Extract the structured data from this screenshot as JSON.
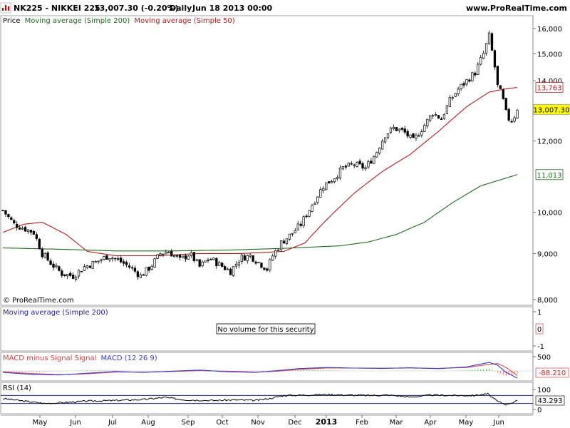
{
  "header": {
    "title": "NK225 - NIKKEI 225",
    "price": "13,007.30 (-0.20%)",
    "period": "Daily",
    "date": "Jun 18 2013 00:00",
    "site": "www.ProRealTime.com"
  },
  "main": {
    "legend_price": "Price",
    "legend_ma200": "Moving average (Simple 200)",
    "legend_ma50": "Moving average (Simple 50)",
    "copyright": "© ProRealTime.com"
  },
  "volume": {
    "title": "Moving average (Simple 200)",
    "message": "No volume for this security",
    "value_label": "0"
  },
  "macd": {
    "title_a": "MACD minus Signal Signal",
    "title_b": "MACD (12 26 9)",
    "value_label": "-88.210"
  },
  "rsi": {
    "title": "RSI (14)",
    "value_label": "43.293"
  },
  "colors": {
    "ma200": "#1e6b1e",
    "ma50": "#b01c1c",
    "macd": "#3a3acc",
    "signal": "#e05050",
    "candle_up": "#ffffff",
    "candle_down": "#000000",
    "rsi_band": "#1a237e",
    "price_tag": "#ffff00"
  },
  "chart_data": [
    {
      "type": "candlestick",
      "ylim": [
        8000,
        16000
      ],
      "yticks": [
        8000,
        9000,
        10000,
        12000,
        14000,
        15000,
        16000
      ],
      "ytick_labels": [
        "8,000",
        "9,000",
        "10,000",
        "12,000",
        "14,000",
        "15,000",
        "16,000"
      ],
      "x_labels": [
        "May",
        "Jun",
        "Jul",
        "Aug",
        "Sep",
        "Oct",
        "Nov",
        "Dec",
        "2013",
        "Feb",
        "Mar",
        "Apr",
        "May",
        "Jun"
      ],
      "price_anchors": [
        [
          0,
          10050
        ],
        [
          8,
          9700
        ],
        [
          15,
          9600
        ],
        [
          22,
          9500
        ],
        [
          28,
          9000
        ],
        [
          35,
          8750
        ],
        [
          42,
          8550
        ],
        [
          50,
          8500
        ],
        [
          58,
          8700
        ],
        [
          66,
          8800
        ],
        [
          75,
          8950
        ],
        [
          82,
          8850
        ],
        [
          90,
          8700
        ],
        [
          98,
          8500
        ],
        [
          105,
          8700
        ],
        [
          112,
          9000
        ],
        [
          118,
          9050
        ],
        [
          126,
          8850
        ],
        [
          133,
          9000
        ],
        [
          140,
          8700
        ],
        [
          147,
          8900
        ],
        [
          154,
          8750
        ],
        [
          162,
          8600
        ],
        [
          169,
          8900
        ],
        [
          176,
          8950
        ],
        [
          182,
          8800
        ],
        [
          188,
          8650
        ],
        [
          192,
          8950
        ],
        [
          198,
          9250
        ],
        [
          205,
          9450
        ],
        [
          212,
          9700
        ],
        [
          220,
          10200
        ],
        [
          228,
          10700
        ],
        [
          235,
          10900
        ],
        [
          242,
          11200
        ],
        [
          250,
          11300
        ],
        [
          258,
          11200
        ],
        [
          265,
          11600
        ],
        [
          272,
          12200
        ],
        [
          278,
          12400
        ],
        [
          285,
          12300
        ],
        [
          292,
          12000
        ],
        [
          300,
          12500
        ],
        [
          306,
          12900
        ],
        [
          312,
          12700
        ],
        [
          318,
          13300
        ],
        [
          324,
          13700
        ],
        [
          330,
          14000
        ],
        [
          336,
          14300
        ],
        [
          342,
          15000
        ],
        [
          346,
          15700
        ],
        [
          348,
          15100
        ],
        [
          350,
          14500
        ],
        [
          352,
          13800
        ],
        [
          354,
          13600
        ],
        [
          356,
          13300
        ],
        [
          358,
          12900
        ],
        [
          361,
          12600
        ],
        [
          364,
          12800
        ],
        [
          366,
          13050
        ]
      ],
      "ma200": {
        "name": "Moving average (Simple 200)",
        "anchors": [
          [
            0,
            9130
          ],
          [
            40,
            9100
          ],
          [
            80,
            9060
          ],
          [
            120,
            9060
          ],
          [
            160,
            9080
          ],
          [
            200,
            9120
          ],
          [
            240,
            9180
          ],
          [
            260,
            9270
          ],
          [
            280,
            9450
          ],
          [
            300,
            9750
          ],
          [
            320,
            10250
          ],
          [
            340,
            10700
          ],
          [
            366,
            11013
          ]
        ]
      },
      "ma50": {
        "name": "Moving average (Simple 50)",
        "anchors": [
          [
            0,
            9500
          ],
          [
            15,
            9700
          ],
          [
            28,
            9750
          ],
          [
            45,
            9450
          ],
          [
            60,
            9050
          ],
          [
            80,
            8950
          ],
          [
            110,
            8950
          ],
          [
            140,
            9000
          ],
          [
            170,
            9000
          ],
          [
            200,
            9050
          ],
          [
            215,
            9250
          ],
          [
            230,
            9800
          ],
          [
            250,
            10500
          ],
          [
            270,
            11100
          ],
          [
            290,
            11600
          ],
          [
            310,
            12300
          ],
          [
            330,
            13100
          ],
          [
            346,
            13600
          ],
          [
            356,
            13700
          ],
          [
            366,
            13763
          ]
        ]
      },
      "last_price_label": "13,007.30",
      "ma200_label": "11,013",
      "ma50_label": "13,763"
    },
    {
      "type": "table",
      "ylim": [
        -1,
        1
      ],
      "yticks": [
        1,
        -1
      ],
      "ytick_labels": [
        "1",
        "-1"
      ]
    },
    {
      "type": "line",
      "ylim": [
        -300,
        700
      ],
      "yticks": [
        500
      ],
      "ytick_labels": [
        "500"
      ],
      "macd": {
        "name": "MACD",
        "anchors": [
          [
            0,
            -50
          ],
          [
            20,
            -120
          ],
          [
            40,
            -140
          ],
          [
            60,
            -80
          ],
          [
            80,
            -20
          ],
          [
            100,
            -50
          ],
          [
            120,
            -10
          ],
          [
            140,
            30
          ],
          [
            160,
            -30
          ],
          [
            180,
            -50
          ],
          [
            195,
            10
          ],
          [
            210,
            80
          ],
          [
            230,
            120
          ],
          [
            250,
            100
          ],
          [
            270,
            90
          ],
          [
            290,
            110
          ],
          [
            310,
            80
          ],
          [
            330,
            140
          ],
          [
            346,
            300
          ],
          [
            352,
            200
          ],
          [
            358,
            -50
          ],
          [
            366,
            -250
          ]
        ]
      },
      "signal": {
        "name": "Signal",
        "anchors": [
          [
            0,
            -30
          ],
          [
            20,
            -90
          ],
          [
            40,
            -130
          ],
          [
            60,
            -100
          ],
          [
            80,
            -40
          ],
          [
            100,
            -40
          ],
          [
            120,
            -20
          ],
          [
            140,
            10
          ],
          [
            160,
            -10
          ],
          [
            180,
            -40
          ],
          [
            195,
            -10
          ],
          [
            210,
            50
          ],
          [
            230,
            100
          ],
          [
            250,
            100
          ],
          [
            270,
            95
          ],
          [
            290,
            100
          ],
          [
            310,
            90
          ],
          [
            330,
            120
          ],
          [
            346,
            230
          ],
          [
            352,
            260
          ],
          [
            358,
            120
          ],
          [
            366,
            -160
          ]
        ]
      }
    },
    {
      "type": "line",
      "ylim": [
        0,
        100
      ],
      "yticks": [
        100,
        0
      ],
      "ytick_labels": [
        "100",
        "0"
      ],
      "upper": 70,
      "lower": 30,
      "rsi": {
        "name": "RSI",
        "anchors": [
          [
            0,
            55
          ],
          [
            15,
            42
          ],
          [
            30,
            30
          ],
          [
            45,
            35
          ],
          [
            60,
            42
          ],
          [
            80,
            45
          ],
          [
            100,
            50
          ],
          [
            115,
            60
          ],
          [
            130,
            48
          ],
          [
            150,
            45
          ],
          [
            165,
            48
          ],
          [
            180,
            45
          ],
          [
            190,
            55
          ],
          [
            200,
            70
          ],
          [
            215,
            72
          ],
          [
            230,
            75
          ],
          [
            245,
            72
          ],
          [
            260,
            70
          ],
          [
            275,
            72
          ],
          [
            290,
            62
          ],
          [
            305,
            72
          ],
          [
            320,
            70
          ],
          [
            335,
            70
          ],
          [
            345,
            78
          ],
          [
            352,
            40
          ],
          [
            358,
            25
          ],
          [
            366,
            43
          ]
        ]
      }
    }
  ]
}
